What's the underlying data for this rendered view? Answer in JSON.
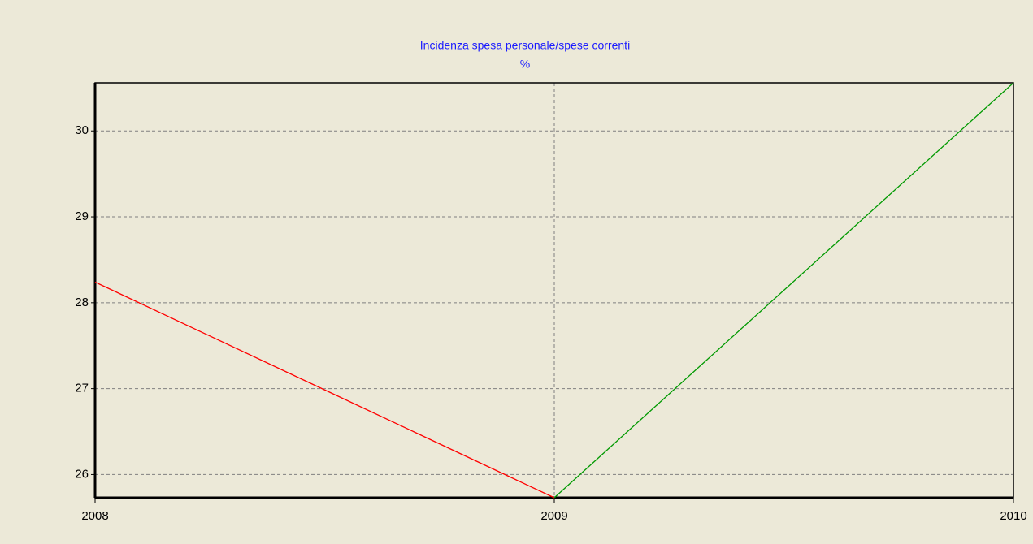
{
  "chart_data": {
    "type": "line",
    "title": "Incidenza spesa personale/spese correnti",
    "subtitle": "%",
    "x": [
      2008,
      2009,
      2010
    ],
    "series": [
      {
        "color": "#ff0000",
        "values": [
          28.24,
          25.73,
          null
        ]
      },
      {
        "color": "#009900",
        "values": [
          null,
          25.73,
          30.56
        ]
      }
    ],
    "xlim": [
      2008,
      2010
    ],
    "xticks": [
      2008,
      2009,
      2010
    ],
    "ylim": [
      25.73,
      30.56
    ],
    "yticks": [
      26,
      27,
      28,
      29,
      30
    ],
    "grid": true
  }
}
